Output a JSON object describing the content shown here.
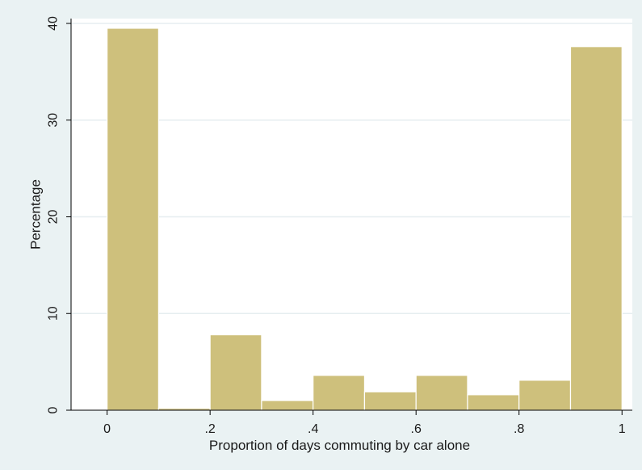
{
  "chart_data": {
    "type": "bar",
    "subtype": "histogram",
    "xlabel": "Proportion of days commuting by car alone",
    "ylabel": "Percentage",
    "bin_edges": [
      0,
      0.1,
      0.2,
      0.3,
      0.4,
      0.5,
      0.6,
      0.7,
      0.8,
      0.9,
      1.0
    ],
    "values": [
      39.5,
      0.2,
      7.8,
      1.0,
      3.6,
      1.9,
      3.6,
      1.6,
      3.1,
      37.6
    ],
    "xlim": [
      -0.07,
      1.02
    ],
    "ylim": [
      0,
      40.5
    ],
    "xticks": [
      {
        "value": 0,
        "label": "0"
      },
      {
        "value": 0.2,
        "label": ".2"
      },
      {
        "value": 0.4,
        "label": ".4"
      },
      {
        "value": 0.6,
        "label": ".6"
      },
      {
        "value": 0.8,
        "label": ".8"
      },
      {
        "value": 1,
        "label": "1"
      }
    ],
    "yticks": [
      {
        "value": 0,
        "label": "0"
      },
      {
        "value": 10,
        "label": "10"
      },
      {
        "value": 20,
        "label": "20"
      },
      {
        "value": 30,
        "label": "30"
      },
      {
        "value": 40,
        "label": "40"
      }
    ],
    "grid": "horizontal",
    "colors": {
      "outer_background": "#eaf2f3",
      "plot_background": "#ffffff",
      "bar_fill": "#cec07c",
      "bar_edge": "#ffffff",
      "grid": "#e6eef0",
      "axis": "#000000",
      "text": "#1a1a1a"
    }
  }
}
